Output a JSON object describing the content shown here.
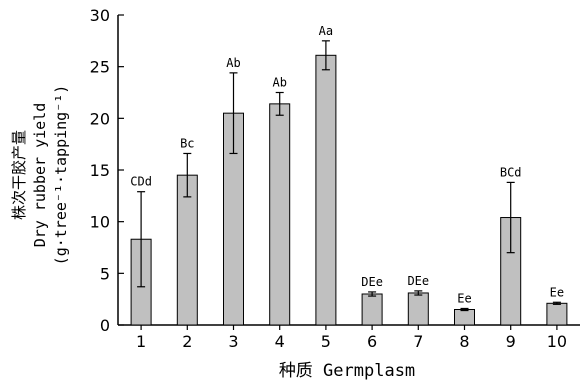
{
  "chart_data": {
    "type": "bar",
    "categories": [
      "1",
      "2",
      "3",
      "4",
      "5",
      "6",
      "7",
      "8",
      "9",
      "10"
    ],
    "values": [
      8.3,
      14.5,
      20.5,
      21.4,
      26.1,
      3.0,
      3.1,
      1.5,
      10.4,
      2.1
    ],
    "errors": [
      4.6,
      2.1,
      3.9,
      1.1,
      1.4,
      0.2,
      0.2,
      0.1,
      3.4,
      0.1
    ],
    "significance": [
      "CDd",
      "Bc",
      "Ab",
      "Ab",
      "Aa",
      "DEe",
      "DEe",
      "Ee",
      "BCd",
      "Ee"
    ],
    "ylim": [
      0,
      30
    ],
    "yticks": [
      "0",
      "5",
      "10",
      "15",
      "20",
      "25",
      "30"
    ],
    "xlabel": "种质 Germplasm",
    "ylabel_lines": [
      "株次干胶产量",
      "Dry rubber yield",
      "(g·tree⁻¹·tapping⁻¹)"
    ],
    "bar_color": "#c0c0c0",
    "grid": false,
    "legend": "none"
  }
}
